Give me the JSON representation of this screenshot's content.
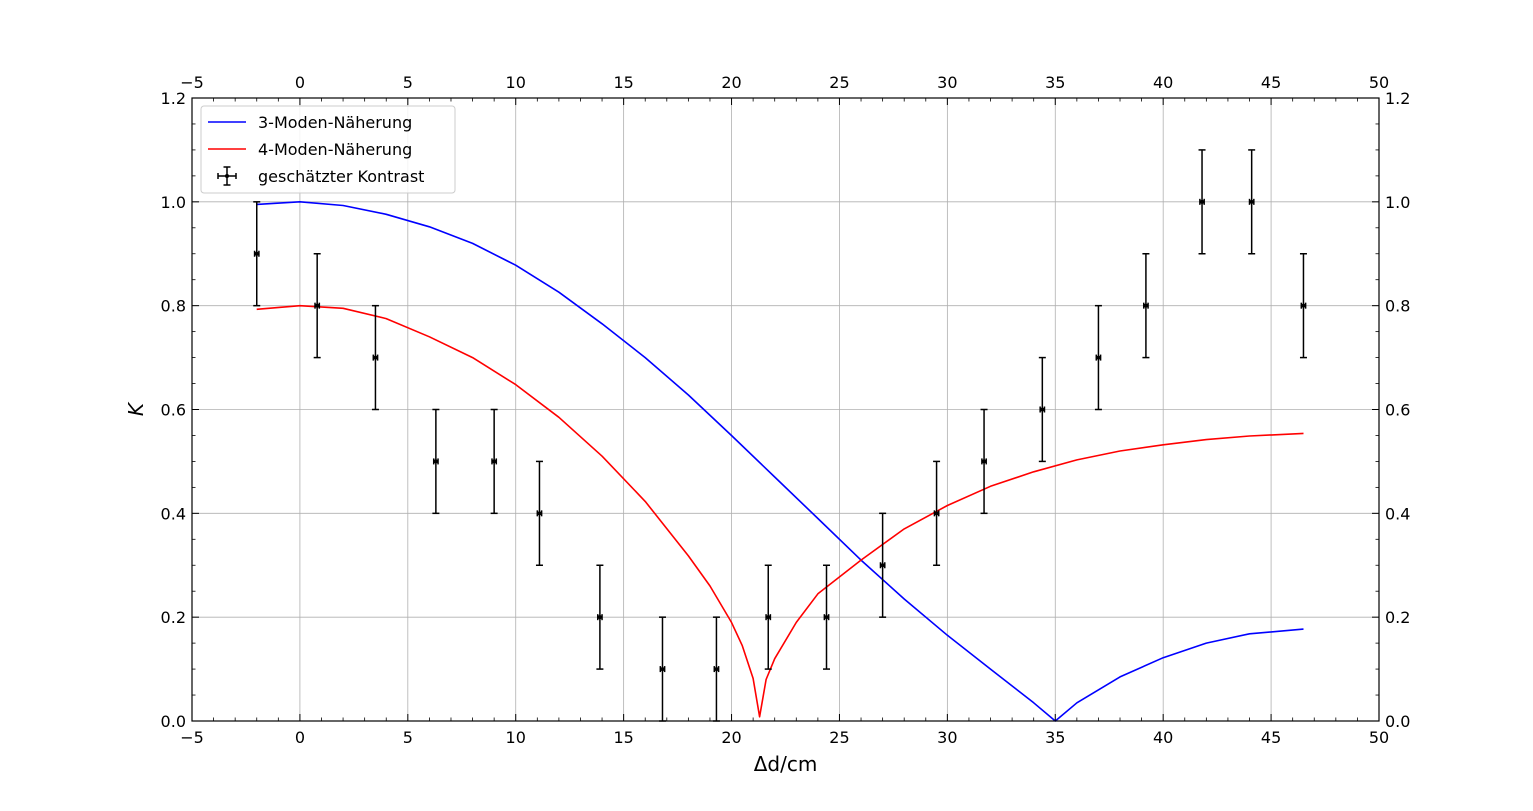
{
  "chart_data": {
    "type": "line",
    "title": "",
    "xlabel": "Δd/cm",
    "ylabel": "K",
    "xlim": [
      -5,
      50
    ],
    "ylim": [
      0.0,
      1.2
    ],
    "xticks": [
      "−5",
      "0",
      "5",
      "10",
      "15",
      "20",
      "25",
      "30",
      "35",
      "40",
      "45",
      "50"
    ],
    "yticks": [
      "0.0",
      "0.2",
      "0.4",
      "0.6",
      "0.8",
      "1.0",
      "1.2"
    ],
    "grid": true,
    "legend_position": "top-left",
    "series": [
      {
        "name": "3-Moden-Näherung",
        "kind": "line",
        "color": "#0000ff",
        "x": [
          -2.0,
          0.0,
          2.0,
          4.0,
          6.0,
          8.0,
          10.0,
          12.0,
          14.0,
          16.0,
          18.0,
          20.0,
          22.0,
          24.0,
          26.0,
          28.0,
          30.0,
          32.0,
          34.0,
          35.0,
          36.0,
          38.0,
          40.0,
          42.0,
          44.0,
          46.5
        ],
        "y": [
          0.995,
          1.0,
          0.993,
          0.976,
          0.952,
          0.92,
          0.878,
          0.826,
          0.765,
          0.7,
          0.628,
          0.55,
          0.47,
          0.39,
          0.31,
          0.235,
          0.165,
          0.1,
          0.035,
          0.0,
          0.035,
          0.085,
          0.122,
          0.15,
          0.168,
          0.177
        ]
      },
      {
        "name": "4-Moden-Näherung",
        "kind": "line",
        "color": "#ff0000",
        "x": [
          -2.0,
          0.0,
          2.0,
          4.0,
          6.0,
          8.0,
          10.0,
          12.0,
          14.0,
          16.0,
          18.0,
          19.0,
          20.0,
          20.5,
          21.0,
          21.3,
          21.6,
          22.0,
          23.0,
          24.0,
          26.0,
          28.0,
          30.0,
          32.0,
          34.0,
          36.0,
          38.0,
          40.0,
          42.0,
          44.0,
          46.5
        ],
        "y": [
          0.793,
          0.8,
          0.795,
          0.775,
          0.74,
          0.7,
          0.648,
          0.585,
          0.51,
          0.423,
          0.318,
          0.26,
          0.19,
          0.145,
          0.082,
          0.008,
          0.08,
          0.12,
          0.19,
          0.245,
          0.31,
          0.37,
          0.415,
          0.452,
          0.48,
          0.503,
          0.52,
          0.532,
          0.542,
          0.549,
          0.554
        ]
      },
      {
        "name": "geschätzter Kontrast",
        "kind": "errorbar",
        "color": "#000000",
        "x": [
          -2.0,
          0.8,
          3.5,
          6.3,
          9.0,
          11.1,
          13.9,
          16.8,
          19.3,
          21.7,
          24.4,
          27.0,
          29.5,
          31.7,
          34.4,
          37.0,
          39.2,
          41.8,
          44.1,
          46.5
        ],
        "y": [
          0.9,
          0.8,
          0.7,
          0.5,
          0.5,
          0.4,
          0.2,
          0.1,
          0.1,
          0.2,
          0.2,
          0.3,
          0.4,
          0.5,
          0.6,
          0.7,
          0.8,
          1.0,
          1.0,
          0.8
        ],
        "yerr": [
          0.1,
          0.1,
          0.1,
          0.1,
          0.1,
          0.1,
          0.1,
          0.1,
          0.1,
          0.1,
          0.1,
          0.1,
          0.1,
          0.1,
          0.1,
          0.1,
          0.1,
          0.1,
          0.1,
          0.1
        ],
        "xerr": [
          0.1,
          0.1,
          0.1,
          0.1,
          0.1,
          0.1,
          0.1,
          0.1,
          0.1,
          0.1,
          0.1,
          0.1,
          0.1,
          0.1,
          0.1,
          0.1,
          0.1,
          0.1,
          0.1,
          0.1
        ]
      }
    ]
  }
}
